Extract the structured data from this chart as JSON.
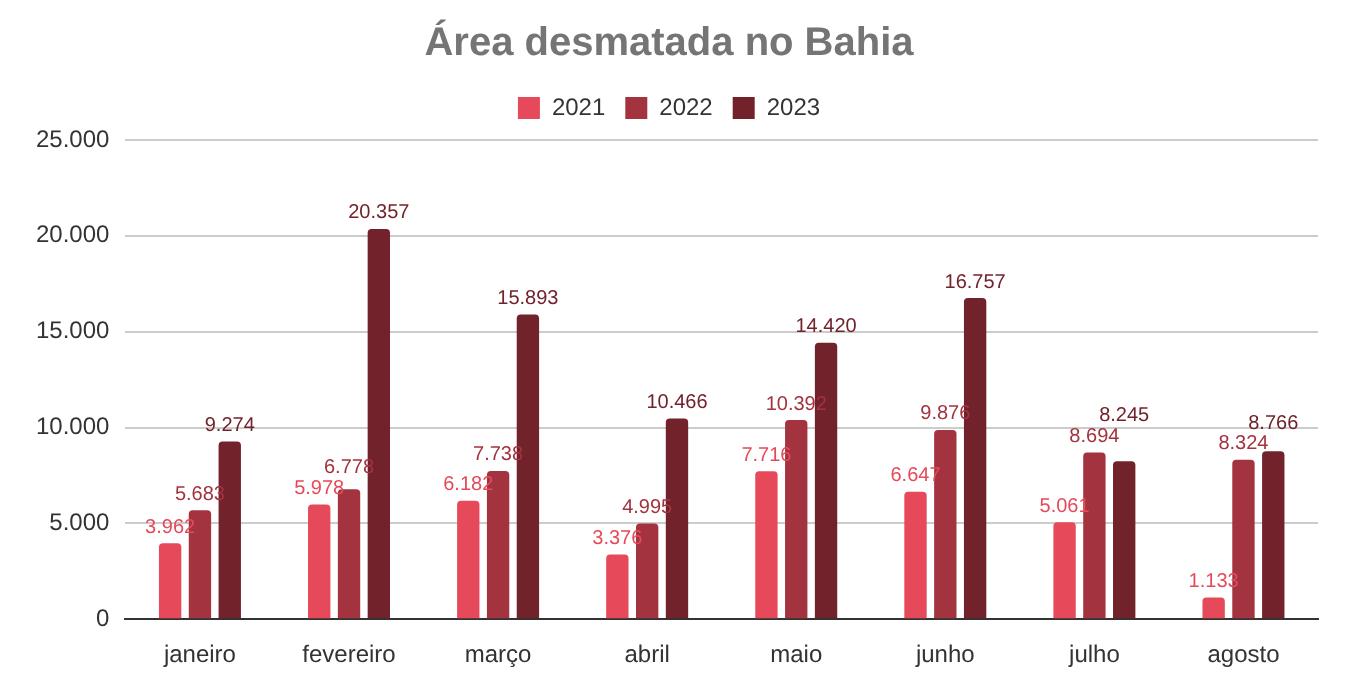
{
  "chart_data": {
    "type": "bar",
    "title": "Área desmatada no Bahia",
    "categories": [
      "janeiro",
      "fevereiro",
      "março",
      "abril",
      "maio",
      "junho",
      "julho",
      "agosto"
    ],
    "series": [
      {
        "name": "2021",
        "color": "#e64a5a",
        "values": [
          3962,
          5978,
          6182,
          3376,
          7716,
          6647,
          5061,
          1133
        ],
        "value_labels": [
          "3.962",
          "5.978",
          "6.182",
          "3.376",
          "7.716",
          "6.647",
          "5.061",
          "1.133"
        ]
      },
      {
        "name": "2022",
        "color": "#a3333f",
        "values": [
          5683,
          6778,
          7738,
          4995,
          10392,
          9876,
          8694,
          8324
        ],
        "value_labels": [
          "5.683",
          "6.778",
          "7.738",
          "4.995",
          "10.392",
          "9.876",
          "8.694",
          "8.324"
        ]
      },
      {
        "name": "2023",
        "color": "#71222b",
        "values": [
          9274,
          20357,
          15893,
          10466,
          14420,
          16757,
          8245,
          8766
        ],
        "value_labels": [
          "9.274",
          "20.357",
          "15.893",
          "10.466",
          "14.420",
          "16.757",
          "8.245",
          "8.766"
        ]
      }
    ],
    "ylim": [
      0,
      25000
    ],
    "yticks": [
      0,
      {
        "value": 5000,
        "label": "5.000"
      },
      {
        "value": 10000,
        "label": "10.000"
      },
      {
        "value": 15000,
        "label": "15.000"
      },
      {
        "value": 20000,
        "label": "20.000"
      },
      {
        "value": 25000,
        "label": "25.000"
      }
    ],
    "grid": "y",
    "legend": "top"
  }
}
